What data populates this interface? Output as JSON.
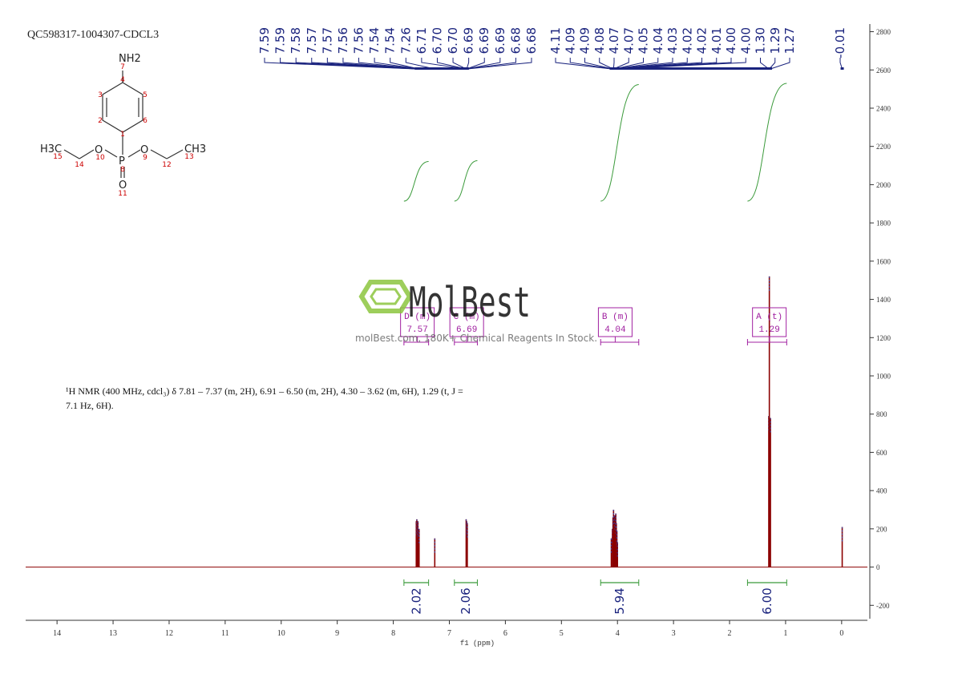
{
  "title": "QC598317-1004307-CDCL3",
  "structure": {
    "atoms": [
      "NH2",
      "H3C",
      "O",
      "O",
      "CH3",
      "P",
      "O"
    ],
    "numbers": [
      "7",
      "4",
      "3",
      "5",
      "2",
      "6",
      "1",
      "15",
      "14",
      "10",
      "8",
      "9",
      "12",
      "13",
      "11"
    ]
  },
  "watermark": {
    "brand": "MolBest",
    "tagline": "molBest.com, 180K+ Chemical Reagents In Stock."
  },
  "chart_data": {
    "type": "nmr",
    "xlabel": "f1 (ppm)",
    "xlim": [
      14.56,
      -0.46
    ],
    "xticks": [
      14,
      13,
      12,
      11,
      10,
      9,
      8,
      7,
      6,
      5,
      4,
      3,
      2,
      1,
      0
    ],
    "ylim": [
      -270,
      2840
    ],
    "yticks": [
      -200,
      0,
      200,
      400,
      600,
      800,
      1000,
      1200,
      1400,
      1600,
      1800,
      2000,
      2200,
      2400,
      2600,
      2800
    ],
    "color": "#8b0000",
    "peaks": {
      "x": [
        7.59,
        7.58,
        7.57,
        7.56,
        7.54,
        7.26,
        6.7,
        6.69,
        6.68,
        4.11,
        4.09,
        4.08,
        4.07,
        4.05,
        4.04,
        4.03,
        4.02,
        4.01,
        4.0,
        1.3,
        1.29,
        1.27,
        -0.01
      ],
      "values": [
        240,
        250,
        230,
        240,
        200,
        150,
        250,
        240,
        230,
        150,
        200,
        260,
        300,
        270,
        250,
        280,
        230,
        190,
        130,
        790,
        1520,
        780,
        210
      ]
    },
    "peak_labels": {
      "values": [
        7.59,
        7.59,
        7.58,
        7.57,
        7.57,
        7.56,
        7.56,
        7.54,
        7.54,
        7.26,
        6.71,
        6.7,
        6.7,
        6.69,
        6.69,
        6.69,
        6.68,
        6.68,
        4.11,
        4.09,
        4.09,
        4.08,
        4.07,
        4.07,
        4.05,
        4.04,
        4.03,
        4.02,
        4.02,
        4.01,
        4.0,
        4.0,
        1.3,
        1.29,
        1.27,
        -0.01
      ],
      "value_labels": [
        "7.59",
        "7.59",
        "7.58",
        "7.57",
        "7.57",
        "7.56",
        "7.56",
        "7.54",
        "7.54",
        "7.26",
        "6.71",
        "6.70",
        "6.70",
        "6.69",
        "6.69",
        "6.69",
        "6.68",
        "6.68",
        "4.11",
        "4.09",
        "4.09",
        "4.08",
        "4.07",
        "4.07",
        "4.05",
        "4.04",
        "4.03",
        "4.02",
        "4.02",
        "4.01",
        "4.00",
        "4.00",
        "1.30",
        "1.29",
        "1.27",
        "-0.01"
      ]
    },
    "integrals": [
      {
        "range": [
          7.81,
          7.37
        ],
        "value": 2.02,
        "label": "2.02"
      },
      {
        "range": [
          6.91,
          6.5
        ],
        "value": 2.06,
        "label": "2.06"
      },
      {
        "range": [
          4.3,
          3.62
        ],
        "value": 5.94,
        "label": "5.94"
      },
      {
        "range": [
          1.68,
          0.98
        ],
        "value": 6.0,
        "label": "6.00"
      }
    ],
    "multiplets": [
      {
        "name": "D (m)",
        "shift": 7.57,
        "shift_label": "7.57",
        "range": [
          7.81,
          7.37
        ]
      },
      {
        "name": "C (m)",
        "shift": 6.69,
        "shift_label": "6.69",
        "range": [
          6.91,
          6.5
        ]
      },
      {
        "name": "B (m)",
        "shift": 4.04,
        "shift_label": "4.04",
        "range": [
          4.3,
          3.62
        ]
      },
      {
        "name": "A (t)",
        "shift": 1.29,
        "shift_label": "1.29",
        "range": [
          1.68,
          0.98
        ]
      }
    ],
    "description": [
      "¹H NMR (400 MHz, cdcl₃) δ 7.81 – 7.37 (m, 2H), 6.91 – 6.50 (m, 2H), 4.30 – 3.62 (m, 6H), 1.29 (t, J =",
      "7.1 Hz, 6H)."
    ]
  }
}
